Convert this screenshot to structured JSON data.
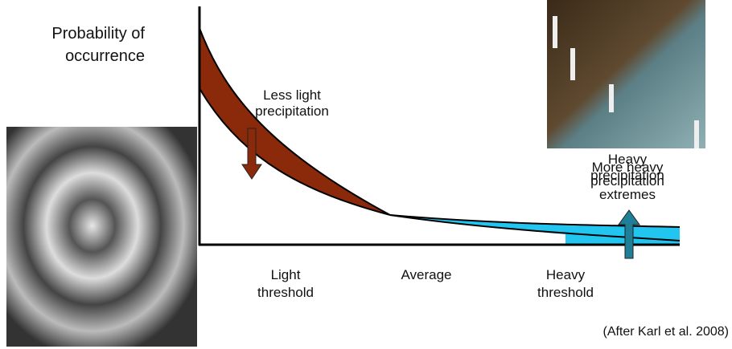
{
  "y_axis_label": [
    "Probability of",
    "occurrence"
  ],
  "annotations": {
    "less_light": [
      "Less light",
      "precipitation"
    ],
    "heavy": [
      "Heavy",
      "precipitation"
    ],
    "more_heavy": [
      "More heavy",
      "precipitation",
      "extremes"
    ]
  },
  "x_labels": {
    "light_threshold": [
      "Light",
      "threshold"
    ],
    "average": [
      "Average"
    ],
    "heavy_threshold": [
      "Heavy",
      "threshold"
    ]
  },
  "citation": "(After Karl et al. 2008)"
}
